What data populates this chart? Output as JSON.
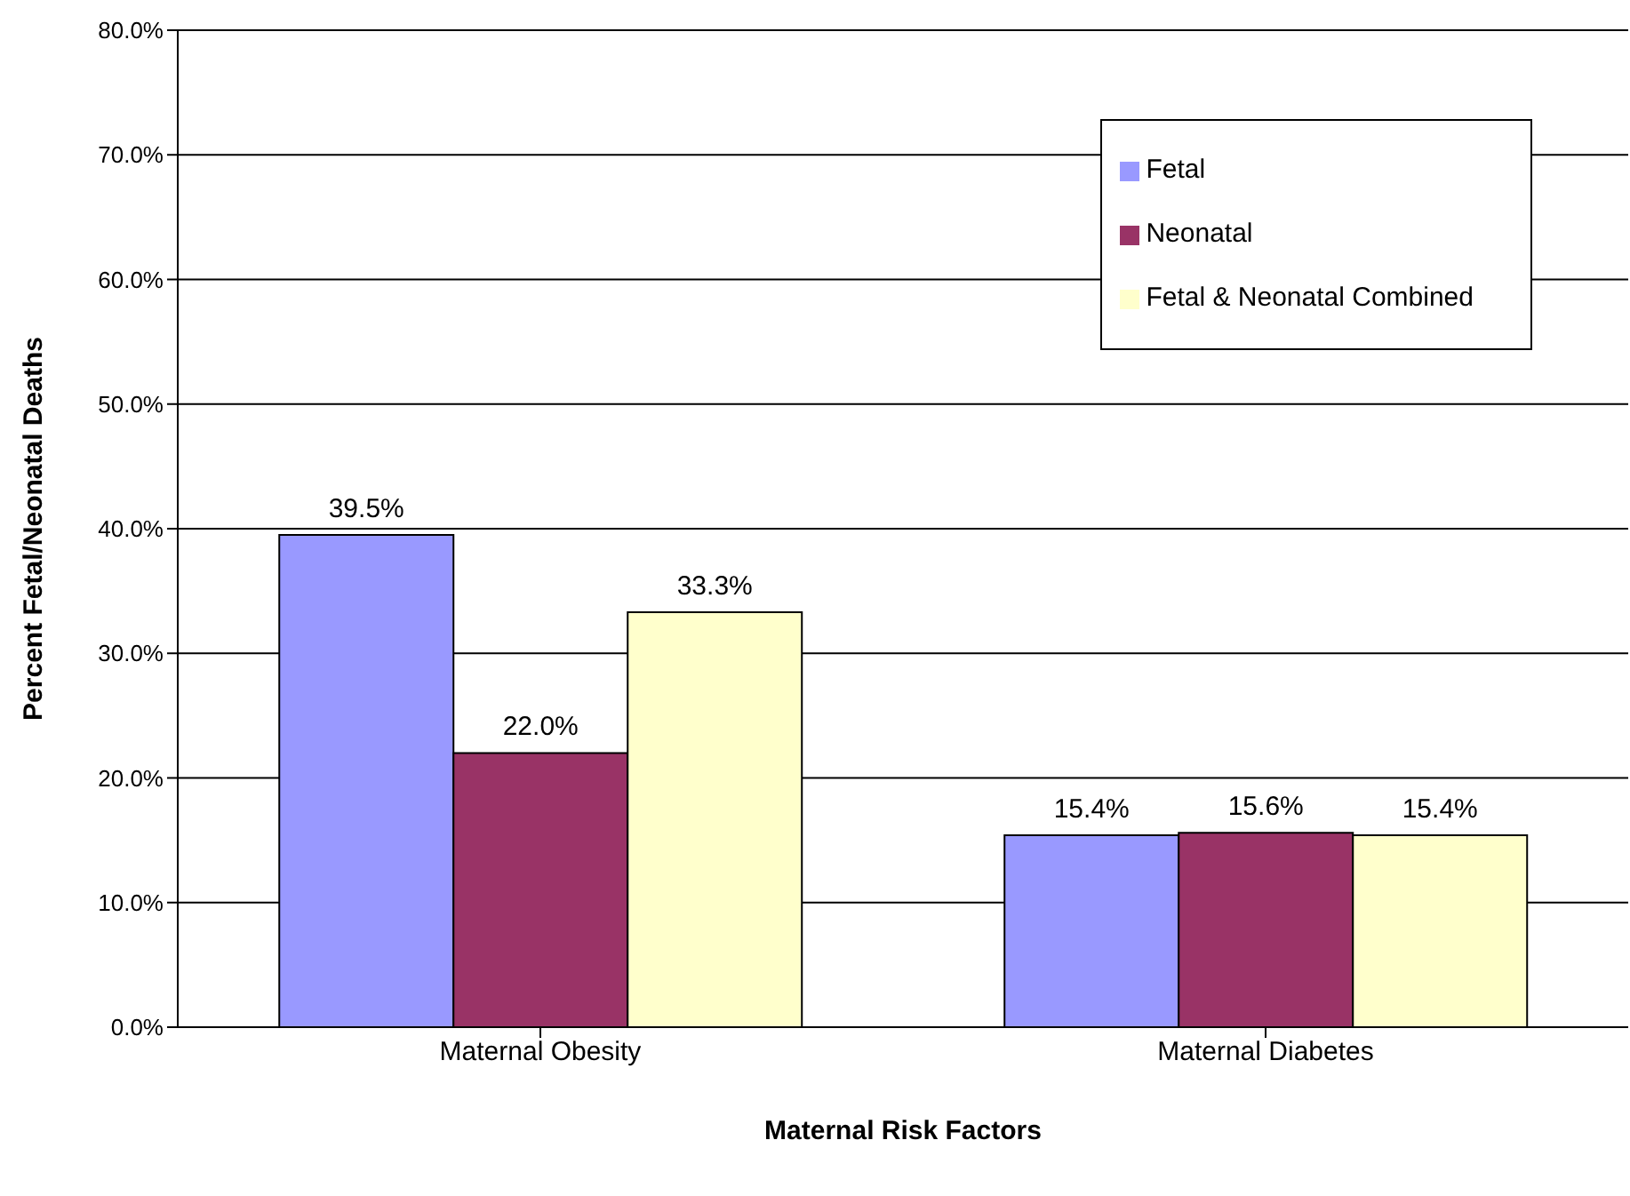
{
  "chart_data": {
    "type": "bar",
    "xlabel": "Maternal Risk Factors",
    "ylabel": "Percent  Fetal/Neonatal Deaths",
    "categories": [
      "Maternal Obesity",
      "Maternal Diabetes"
    ],
    "series": [
      {
        "name": "Fetal",
        "color": "#9999ff",
        "values": [
          39.5,
          15.4
        ],
        "value_labels": [
          "39.5%",
          "15.4%"
        ]
      },
      {
        "name": "Neonatal",
        "color": "#993366",
        "values": [
          22.0,
          15.6
        ],
        "value_labels": [
          "22.0%",
          "15.6%"
        ]
      },
      {
        "name": "Fetal & Neonatal Combined",
        "color": "#ffffcc",
        "values": [
          33.3,
          15.4
        ],
        "value_labels": [
          "33.3%",
          "15.4%"
        ]
      }
    ],
    "ylim": [
      0,
      80
    ],
    "yticks": [
      {
        "value": 0,
        "label": "0.0%"
      },
      {
        "value": 10,
        "label": "10.0%"
      },
      {
        "value": 20,
        "label": "20.0%"
      },
      {
        "value": 30,
        "label": "30.0%"
      },
      {
        "value": 40,
        "label": "40.0%"
      },
      {
        "value": 50,
        "label": "50.0%"
      },
      {
        "value": 60,
        "label": "60.0%"
      },
      {
        "value": 70,
        "label": "70.0%"
      },
      {
        "value": 80,
        "label": "80.0%"
      }
    ],
    "grid": "y",
    "legend": "top right"
  }
}
